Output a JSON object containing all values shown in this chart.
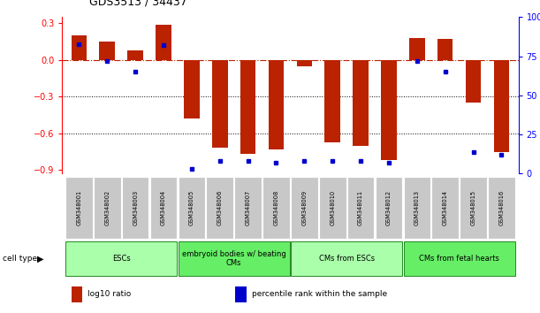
{
  "title": "GDS3513 / 34437",
  "samples": [
    "GSM348001",
    "GSM348002",
    "GSM348003",
    "GSM348004",
    "GSM348005",
    "GSM348006",
    "GSM348007",
    "GSM348008",
    "GSM348009",
    "GSM348010",
    "GSM348011",
    "GSM348012",
    "GSM348013",
    "GSM348014",
    "GSM348015",
    "GSM348016"
  ],
  "log10_ratio": [
    0.2,
    0.15,
    0.08,
    0.29,
    -0.48,
    -0.72,
    -0.77,
    -0.73,
    -0.05,
    -0.67,
    -0.7,
    -0.82,
    0.18,
    0.17,
    -0.35,
    -0.75
  ],
  "percentile_rank": [
    83,
    72,
    65,
    82,
    3,
    8,
    8,
    7,
    8,
    8,
    8,
    7,
    72,
    65,
    14,
    12
  ],
  "cell_type_groups": [
    {
      "label": "ESCs",
      "start": 0,
      "end": 3,
      "color": "#AAFFAA"
    },
    {
      "label": "embryoid bodies w/ beating\nCMs",
      "start": 4,
      "end": 7,
      "color": "#66EE66"
    },
    {
      "label": "CMs from ESCs",
      "start": 8,
      "end": 11,
      "color": "#AAFFAA"
    },
    {
      "label": "CMs from fetal hearts",
      "start": 12,
      "end": 15,
      "color": "#66EE66"
    }
  ],
  "bar_color": "#BB2200",
  "percentile_color": "#0000CC",
  "ylim_left": [
    -0.93,
    0.35
  ],
  "ylim_right": [
    0,
    100
  ],
  "yticks_left": [
    0.3,
    0.0,
    -0.3,
    -0.6,
    -0.9
  ],
  "yticks_right": [
    100,
    75,
    50,
    25,
    0
  ],
  "hline_y": 0.0,
  "dotted_lines": [
    -0.3,
    -0.6
  ],
  "legend_items": [
    {
      "label": "log10 ratio",
      "color": "#BB2200"
    },
    {
      "label": "percentile rank within the sample",
      "color": "#0000CC"
    }
  ]
}
